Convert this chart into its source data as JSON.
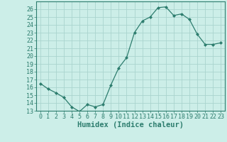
{
  "x": [
    0,
    1,
    2,
    3,
    4,
    5,
    6,
    7,
    8,
    9,
    10,
    11,
    12,
    13,
    14,
    15,
    16,
    17,
    18,
    19,
    20,
    21,
    22,
    23
  ],
  "y": [
    16.5,
    15.8,
    15.3,
    14.7,
    13.5,
    12.9,
    13.8,
    13.5,
    13.8,
    16.3,
    18.5,
    19.8,
    23.0,
    24.5,
    25.0,
    26.2,
    26.3,
    25.2,
    25.4,
    24.7,
    22.8,
    21.5,
    21.5,
    21.7
  ],
  "line_color": "#2d7d6e",
  "marker_color": "#2d7d6e",
  "bg_color": "#cceee8",
  "grid_color": "#aad4ce",
  "axis_label_color": "#2d7d6e",
  "xlabel": "Humidex (Indice chaleur)",
  "ylim": [
    13,
    27
  ],
  "xlim": [
    -0.5,
    23.5
  ],
  "yticks": [
    13,
    14,
    15,
    16,
    17,
    18,
    19,
    20,
    21,
    22,
    23,
    24,
    25,
    26
  ],
  "xticks": [
    0,
    1,
    2,
    3,
    4,
    5,
    6,
    7,
    8,
    9,
    10,
    11,
    12,
    13,
    14,
    15,
    16,
    17,
    18,
    19,
    20,
    21,
    22,
    23
  ],
  "spine_color": "#2d7d6e",
  "tick_fontsize": 6.0,
  "xlabel_fontsize": 7.5
}
